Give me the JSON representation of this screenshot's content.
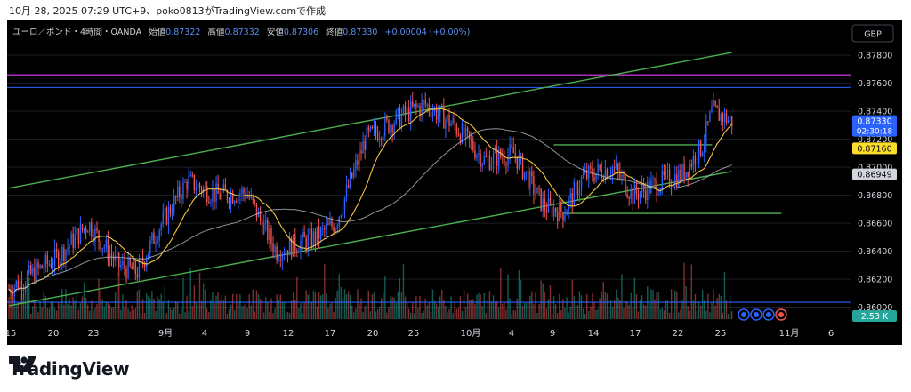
{
  "caption": "10月 28, 2025 07:29 UTC+9、poko0813がTradingView.comで作成",
  "header": {
    "symbol": "ユーロ／ポンド・4時間・OANDA",
    "open_label": "始値",
    "open_value": "0.87322",
    "high_label": "高値",
    "high_value": "0.87332",
    "low_label": "安値",
    "low_value": "0.87306",
    "close_label": "終値",
    "close_value": "0.87330",
    "change": "+0.00004 (+0.00%)"
  },
  "currency_badge": "GBP",
  "brand": {
    "name": "TradingView"
  },
  "price_axis": {
    "ticks": [
      "0.87800",
      "0.87600",
      "0.87400",
      "0.87200",
      "0.87000",
      "0.86800",
      "0.86600",
      "0.86400",
      "0.86200",
      "0.86000"
    ],
    "ylim": [
      0.8594,
      0.8789
    ],
    "badges": [
      {
        "label": "0.87330",
        "sub": "02:30:18",
        "color": "#2962ff",
        "text_color": "#ffffff"
      },
      {
        "label": "0.87160",
        "color": "#fbdd2b",
        "text_color": "#000000"
      },
      {
        "label": "0.86949",
        "color": "#d1d4dc",
        "text_color": "#000000"
      }
    ],
    "volume_badge": {
      "label": "2.53 K",
      "color": "#26a69a"
    }
  },
  "time_axis": {
    "labels": [
      "15",
      "20",
      "23",
      "9月",
      "4",
      "9",
      "12",
      "17",
      "20",
      "25",
      "10月",
      "4",
      "9",
      "14",
      "17",
      "22",
      "25",
      "11月",
      "6"
    ]
  },
  "colors": {
    "up": "#2962ff",
    "down": "#ef5350",
    "vol_up": "#26a69a",
    "vol_down": "#ef5350",
    "ma_fast": "#f5c342",
    "ma_slow": "#b2b5be",
    "channel": "#4caf50",
    "resistance_magenta": "#e040fb",
    "resistance_blue": "#2962ff"
  },
  "chart_data": {
    "type": "candlestick",
    "title": "ユーロ／ポンド・4時間・OANDA",
    "xlabel": "",
    "ylabel": "",
    "ylim": [
      0.8594,
      0.8789
    ],
    "x_range": [
      "2025-08-15",
      "2025-11-06"
    ],
    "series": [
      {
        "name": "close",
        "anchors": [
          {
            "date": "2025-08-15",
            "value": 0.8613
          },
          {
            "date": "2025-08-20",
            "value": 0.8636
          },
          {
            "date": "2025-08-23",
            "value": 0.866
          },
          {
            "date": "2025-08-26",
            "value": 0.863
          },
          {
            "date": "2025-08-28",
            "value": 0.8625
          },
          {
            "date": "2025-08-30",
            "value": 0.8655
          },
          {
            "date": "2025-09-02",
            "value": 0.869
          },
          {
            "date": "2025-09-05",
            "value": 0.868
          },
          {
            "date": "2025-09-08",
            "value": 0.8682
          },
          {
            "date": "2025-09-11",
            "value": 0.864
          },
          {
            "date": "2025-09-15",
            "value": 0.865
          },
          {
            "date": "2025-09-17",
            "value": 0.866
          },
          {
            "date": "2025-09-20",
            "value": 0.872
          },
          {
            "date": "2025-09-24",
            "value": 0.8738
          },
          {
            "date": "2025-09-26",
            "value": 0.8745
          },
          {
            "date": "2025-09-29",
            "value": 0.873
          },
          {
            "date": "2025-10-02",
            "value": 0.8705
          },
          {
            "date": "2025-10-05",
            "value": 0.871
          },
          {
            "date": "2025-10-08",
            "value": 0.8672
          },
          {
            "date": "2025-10-10",
            "value": 0.8668
          },
          {
            "date": "2025-10-12",
            "value": 0.8693
          },
          {
            "date": "2025-10-15",
            "value": 0.87
          },
          {
            "date": "2025-10-17",
            "value": 0.868
          },
          {
            "date": "2025-10-20",
            "value": 0.869
          },
          {
            "date": "2025-10-22",
            "value": 0.8695
          },
          {
            "date": "2025-10-24",
            "value": 0.8715
          },
          {
            "date": "2025-10-25",
            "value": 0.874
          },
          {
            "date": "2025-10-27",
            "value": 0.8733
          }
        ]
      }
    ],
    "moving_averages": [
      {
        "name": "fast",
        "last": 0.8716,
        "color": "#f5c342"
      },
      {
        "name": "slow",
        "last": 0.86949,
        "color": "#b2b5be"
      }
    ],
    "trendlines": [
      {
        "kind": "channel-upper",
        "from": {
          "date": "2025-08-15",
          "value": 0.8685
        },
        "to": {
          "date": "2025-10-27",
          "value": 0.8782
        }
      },
      {
        "kind": "channel-lower",
        "from": {
          "date": "2025-08-15",
          "value": 0.8601
        },
        "to": {
          "date": "2025-10-27",
          "value": 0.8697
        }
      },
      {
        "kind": "range-top",
        "from": {
          "date": "2025-10-09",
          "value": 0.8716
        },
        "to": {
          "date": "2025-10-25",
          "value": 0.8716
        }
      },
      {
        "kind": "range-bottom",
        "from": {
          "date": "2025-10-10",
          "value": 0.8667
        },
        "to": {
          "date": "2025-11-01",
          "value": 0.8667
        }
      }
    ],
    "horizontal_lines": [
      {
        "kind": "resistance",
        "value": 0.8766,
        "color": "#e040fb"
      },
      {
        "kind": "resistance",
        "value": 0.8757,
        "color": "#2962ff"
      },
      {
        "kind": "support",
        "value": 0.86035,
        "color": "#2962ff"
      }
    ],
    "volume_last": "2.53 K",
    "grid": true,
    "legend": "top-left"
  }
}
